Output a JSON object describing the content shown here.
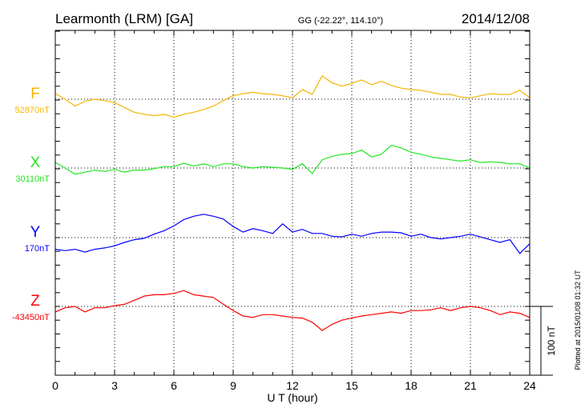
{
  "chart_data": {
    "type": "line",
    "title": "Learmonth (LRM)  [GA]",
    "subtitle": "GG (-22.22°, 114.10°)",
    "date": "2014/12/08",
    "xlabel": "U T (hour)",
    "xlim": [
      0,
      24
    ],
    "xticks": [
      "0",
      "3",
      "6",
      "9",
      "12",
      "15",
      "18",
      "21",
      "24"
    ],
    "grid": "dotted at 3-hour intervals and series baselines",
    "scale_bar_label": "100 nT",
    "plotted_note": "Plotted at 2015/01/08 01:32 UT",
    "x_step_hours": 0.5,
    "units": "nT deviation from baseline",
    "series": [
      {
        "name": "F",
        "baseline_label": "52870nT",
        "color": "#f5b400",
        "values": [
          8,
          0,
          -10,
          -3,
          0,
          -2,
          -5,
          -12,
          -19,
          -22,
          -24,
          -22,
          -26,
          -22,
          -19,
          -15,
          -10,
          -2,
          5,
          8,
          10,
          8,
          7,
          5,
          2,
          14,
          7,
          34,
          24,
          19,
          23,
          28,
          21,
          26,
          20,
          16,
          14,
          13,
          10,
          7,
          7,
          3,
          2,
          5,
          8,
          7,
          7,
          13,
          2
        ]
      },
      {
        "name": "X",
        "baseline_label": "30110nT",
        "color": "#22e622",
        "values": [
          8,
          0,
          -9,
          -6,
          -3,
          -5,
          -2,
          -6,
          -3,
          -3,
          -1,
          2,
          2,
          7,
          3,
          6,
          2,
          6,
          6,
          2,
          0,
          2,
          1,
          0,
          -2,
          6,
          -8,
          12,
          17,
          20,
          21,
          26,
          16,
          20,
          33,
          29,
          23,
          20,
          16,
          14,
          12,
          10,
          12,
          8,
          9,
          8,
          6,
          6,
          0
        ]
      },
      {
        "name": "Y",
        "baseline_label": "170nT",
        "color": "#0000ff",
        "values": [
          -17,
          -19,
          -17,
          -21,
          -17,
          -15,
          -12,
          -7,
          -3,
          -1,
          5,
          10,
          17,
          26,
          31,
          34,
          31,
          27,
          16,
          8,
          13,
          10,
          6,
          20,
          8,
          12,
          6,
          6,
          2,
          1,
          5,
          2,
          6,
          8,
          8,
          7,
          2,
          5,
          0,
          -2,
          0,
          2,
          5,
          1,
          -3,
          -7,
          -3,
          -23,
          -9
        ]
      },
      {
        "name": "Z",
        "baseline_label": "-43450nT",
        "color": "#ff0000",
        "values": [
          -8,
          -2,
          0,
          -8,
          -2,
          -2,
          1,
          3,
          9,
          15,
          17,
          17,
          19,
          23,
          17,
          15,
          13,
          3,
          -6,
          -14,
          -16,
          -12,
          -12,
          -14,
          -16,
          -17,
          -23,
          -35,
          -26,
          -20,
          -17,
          -14,
          -12,
          -10,
          -8,
          -10,
          -6,
          -6,
          -5,
          -2,
          -6,
          -2,
          0,
          -2,
          -6,
          -12,
          -8,
          -10,
          -16
        ]
      }
    ]
  }
}
